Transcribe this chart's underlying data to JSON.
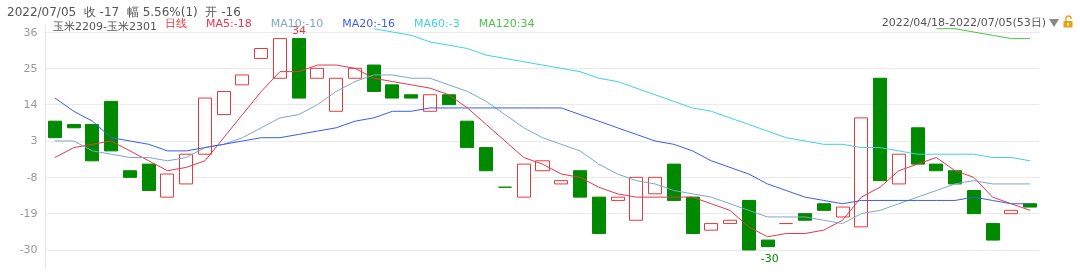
{
  "chart_data": {
    "type": "candlestick",
    "title": "2022/07/05  收 -17  幅 5.56%(1)  开 -16",
    "subtitle": "玉米2209-玉米2301",
    "categories": [
      null,
      null,
      null,
      null,
      null,
      null,
      null,
      null,
      null,
      null,
      null,
      null,
      null,
      null,
      null,
      null,
      null,
      null,
      null,
      null,
      null,
      null,
      null,
      null,
      null,
      null,
      null,
      null,
      null,
      null,
      null,
      null,
      null,
      null,
      null,
      null,
      null,
      null,
      null,
      null,
      null,
      null,
      null,
      null,
      null,
      null,
      null,
      null,
      null,
      null,
      null,
      null,
      null
    ],
    "series": [
      {
        "type": "candlestick",
        "name": "日线",
        "ohlc": [
          [
            9,
            9,
            4,
            4
          ],
          [
            8,
            8,
            7,
            7
          ],
          [
            8,
            8,
            -3,
            -3
          ],
          [
            15,
            15,
            0,
            0
          ],
          [
            -6,
            -6,
            -8,
            -8
          ],
          [
            -4,
            -4,
            -12,
            -12
          ],
          [
            -14,
            -7,
            -14,
            -7
          ],
          [
            -10,
            -1,
            -10,
            -1
          ],
          [
            -1,
            16,
            -1,
            16
          ],
          [
            11,
            18,
            11,
            18
          ],
          [
            20,
            23,
            20,
            23
          ],
          [
            28,
            31,
            28,
            31
          ],
          [
            22,
            34,
            22,
            34
          ],
          [
            34,
            34,
            16,
            16
          ],
          [
            22,
            25,
            22,
            25
          ],
          [
            12,
            22,
            12,
            22
          ],
          [
            22,
            25,
            22,
            25
          ],
          [
            26,
            26,
            18,
            18
          ],
          [
            20,
            20,
            16,
            16
          ],
          [
            17,
            17,
            16,
            16
          ],
          [
            12,
            17,
            12,
            17
          ],
          [
            17,
            17,
            14,
            14
          ],
          [
            9,
            9,
            1,
            1
          ],
          [
            1,
            1,
            -6,
            -6
          ],
          [
            -11,
            -11,
            -11,
            -11
          ],
          [
            -14,
            -4,
            -14,
            -4
          ],
          [
            -6,
            -3,
            -6,
            -3
          ],
          [
            -10,
            -9,
            -10,
            -9
          ],
          [
            -6,
            -6,
            -14,
            -14
          ],
          [
            -14,
            -14,
            -25,
            -25
          ],
          [
            -15,
            -14,
            -15,
            -14
          ],
          [
            -21,
            -8,
            -21,
            -8
          ],
          [
            -13,
            -8,
            -13,
            -8
          ],
          [
            -4,
            -4,
            -15,
            -15
          ],
          [
            -14,
            -14,
            -25,
            -25
          ],
          [
            -24,
            -22,
            -24,
            -22
          ],
          [
            -22,
            -21,
            -22,
            -21
          ],
          [
            -15,
            -15,
            -30,
            -30
          ],
          [
            -27,
            -27,
            -29,
            -29
          ],
          [
            -22,
            -22,
            -22,
            -22
          ],
          [
            -19,
            -19,
            -21,
            -21
          ],
          [
            -16,
            -16,
            -18,
            -18
          ],
          [
            -20,
            -17,
            -20,
            -17
          ],
          [
            -23,
            10,
            -23,
            10
          ],
          [
            22,
            22,
            -9,
            -9
          ],
          [
            -10,
            -1,
            -10,
            -1
          ],
          [
            7,
            7,
            -4,
            -4
          ],
          [
            -4,
            -4,
            -6,
            -6
          ],
          [
            -6,
            -6,
            -10,
            -10
          ],
          [
            -12,
            -12,
            -19,
            -19
          ],
          [
            -22,
            -22,
            -27,
            -27
          ],
          [
            -19,
            -18,
            -19,
            -18
          ],
          [
            -16,
            -16,
            -17,
            -17
          ]
        ],
        "colors": [
          "#008a00",
          "#008a00",
          "#008a00",
          "#008a00",
          "#008a00",
          "#008a00",
          "#e83a3a",
          "#e83a3a",
          "#e83a3a",
          "#e83a3a",
          "#e83a3a",
          "#e83a3a",
          "#e83a3a",
          "#008a00",
          "#e83a3a",
          "#e83a3a",
          "#e83a3a",
          "#008a00",
          "#008a00",
          "#008a00",
          "#e83a3a",
          "#008a00",
          "#008a00",
          "#008a00",
          "#008a00",
          "#e83a3a",
          "#e83a3a",
          "#e83a3a",
          "#008a00",
          "#008a00",
          "#e83a3a",
          "#e83a3a",
          "#e83a3a",
          "#008a00",
          "#008a00",
          "#e83a3a",
          "#e83a3a",
          "#008a00",
          "#008a00",
          "#e83a3a",
          "#008a00",
          "#008a00",
          "#e83a3a",
          "#e83a3a",
          "#008a00",
          "#e83a3a",
          "#008a00",
          "#008a00",
          "#008a00",
          "#008a00",
          "#008a00",
          "#e83a3a",
          "#008a00"
        ],
        "color": "#e83a3a"
      },
      {
        "type": "line",
        "name": "MA5:-18",
        "color": "#e8364d",
        "values": [
          -2,
          1,
          2,
          3,
          0,
          -3,
          -6,
          -5,
          -3,
          4,
          11,
          18,
          24,
          24,
          26,
          26,
          25,
          22,
          21,
          20,
          19,
          17,
          13,
          8,
          3,
          -2,
          -4,
          -7,
          -8,
          -11,
          -13,
          -14,
          -14,
          -14,
          -14,
          -16,
          -18,
          -23,
          -26,
          -25,
          -25,
          -24,
          -21,
          -14,
          -11,
          -6,
          -4,
          -2,
          -6,
          -8,
          -14,
          -16,
          -18
        ]
      },
      {
        "type": "line",
        "name": "MA10:-10",
        "color": "#7fa6c8",
        "values": [
          3,
          3,
          0,
          -1,
          -2,
          -2,
          -3,
          -2,
          1,
          2,
          4,
          7,
          10,
          11,
          14,
          18,
          21,
          23,
          23,
          22,
          22,
          20,
          18,
          15,
          11,
          7,
          4,
          2,
          0,
          -4,
          -7,
          -9,
          -10,
          -12,
          -13,
          -14,
          -16,
          -18,
          -20,
          -20,
          -20,
          -21,
          -22,
          -19,
          -18,
          -16,
          -14,
          -12,
          -10,
          -9,
          -10,
          -10,
          -10
        ]
      },
      {
        "type": "line",
        "name": "MA20:-16",
        "color": "#3a5cf0",
        "values": [
          16,
          12,
          9,
          4,
          3,
          2,
          0,
          0,
          1,
          2,
          3,
          4,
          4,
          5,
          6,
          7,
          9,
          10,
          12,
          12,
          13,
          13,
          13,
          13,
          13,
          13,
          13,
          13,
          11,
          9,
          7,
          5,
          3,
          2,
          0,
          -3,
          -5,
          -7,
          -10,
          -12,
          -14,
          -15,
          -16,
          -15,
          -15,
          -15,
          -15,
          -15,
          -15,
          -14,
          -15,
          -16,
          -16
        ]
      },
      {
        "type": "line",
        "name": "MA60:-3",
        "color": "#3fd3e0",
        "values": [
          null,
          null,
          null,
          null,
          null,
          null,
          null,
          null,
          null,
          null,
          null,
          null,
          null,
          null,
          null,
          null,
          null,
          37,
          36,
          35,
          33,
          32,
          31,
          29,
          28,
          27,
          26,
          25,
          24,
          22,
          21,
          19,
          17,
          15,
          13,
          12,
          10,
          8,
          6,
          4,
          3,
          2,
          2,
          1,
          1,
          0,
          -1,
          -1,
          -1,
          -1,
          -2,
          -2,
          -3
        ]
      },
      {
        "type": "line",
        "name": "MA120:34",
        "color": "#4cc24c",
        "values": [
          null,
          null,
          null,
          null,
          null,
          null,
          null,
          null,
          null,
          null,
          null,
          null,
          null,
          null,
          null,
          null,
          null,
          null,
          null,
          null,
          null,
          null,
          null,
          null,
          null,
          null,
          null,
          null,
          null,
          null,
          null,
          null,
          null,
          null,
          null,
          null,
          null,
          null,
          null,
          null,
          null,
          null,
          null,
          null,
          null,
          null,
          null,
          37,
          37,
          36,
          35,
          34,
          34
        ]
      }
    ],
    "ylim": [
      -36,
      38
    ],
    "yticks": [
      36,
      25,
      14,
      3,
      -8,
      -19,
      -30
    ],
    "grid": "y",
    "legend": "top left",
    "marker": "none",
    "annotations": [
      {
        "text": "34",
        "y": 34
      },
      {
        "text": "-30",
        "y": -30
      },
      "2022/04/18-2022/07/05(53日)"
    ]
  }
}
